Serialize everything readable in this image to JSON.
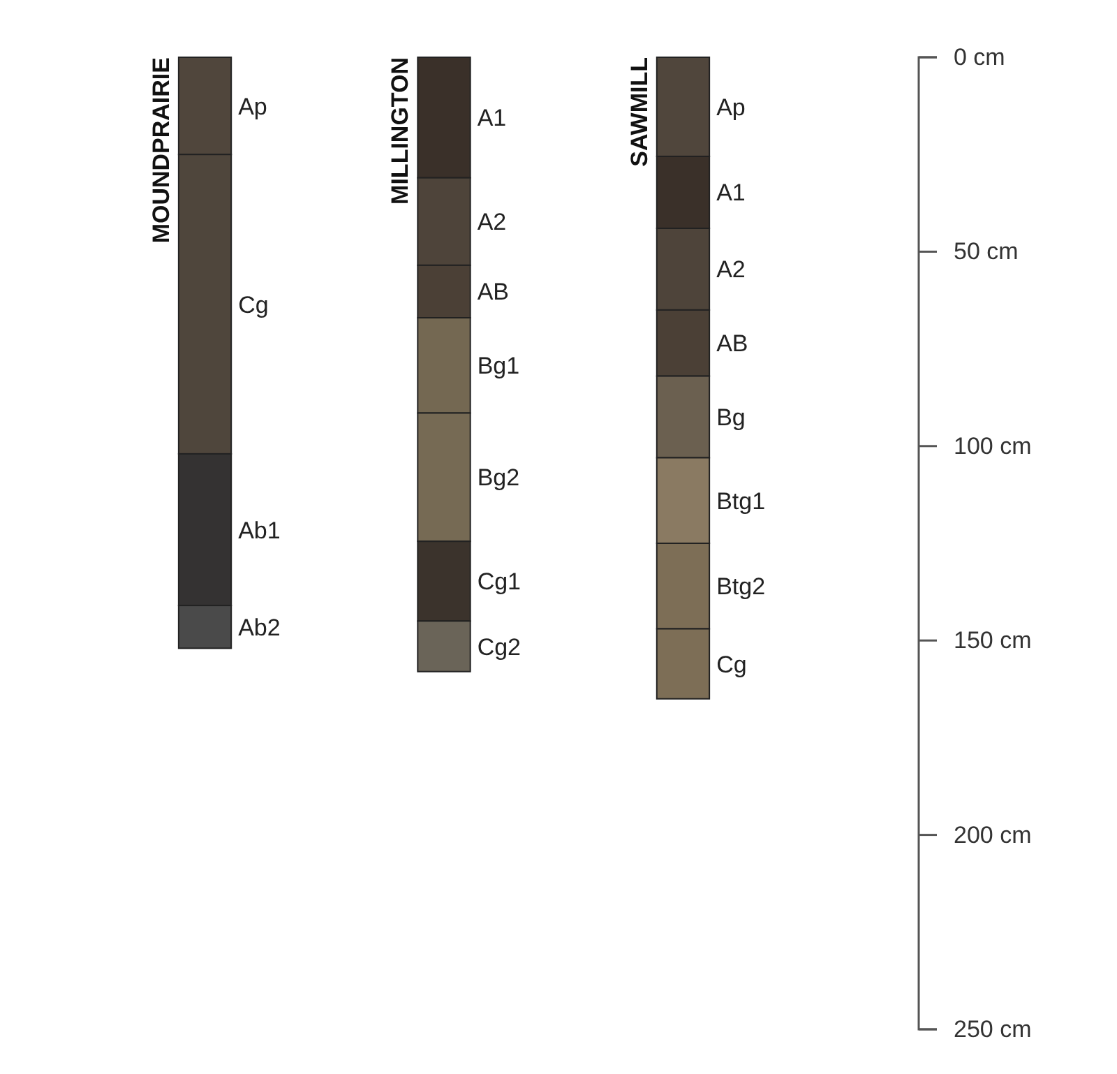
{
  "chart_data": {
    "type": "bar",
    "stacked": true,
    "categories": [
      "MOUNDPRAIRIE",
      "MILLINGTON",
      "SAWMILL"
    ],
    "series": [
      {
        "name": "Ap",
        "color": "#50463c",
        "values": [
          25,
          null,
          25.5
        ]
      },
      {
        "name": "Cg",
        "color": "#4f463c",
        "values": [
          77,
          null,
          null
        ]
      },
      {
        "name": "Ab1",
        "color": "#343232",
        "values": [
          39,
          null,
          null
        ]
      },
      {
        "name": "Ab2",
        "color": "#4a4a4a",
        "values": [
          11,
          null,
          null
        ]
      },
      {
        "name": "A1",
        "color": "#3a3029",
        "values": [
          null,
          31,
          18.5
        ]
      },
      {
        "name": "A2",
        "color": "#4e443a",
        "values": [
          null,
          22.5,
          21
        ]
      },
      {
        "name": "AB",
        "color": "#4b4036",
        "values": [
          null,
          13.5,
          17
        ]
      },
      {
        "name": "Bg1",
        "color": "#746852",
        "values": [
          null,
          24.5,
          null
        ]
      },
      {
        "name": "Bg2",
        "color": "#766a54",
        "values": [
          null,
          33,
          null
        ]
      },
      {
        "name": "Cg1",
        "color": "#3b332c",
        "values": [
          null,
          20.5,
          null
        ]
      },
      {
        "name": "Cg2",
        "color": "#6a6458",
        "values": [
          null,
          13,
          null
        ]
      },
      {
        "name": "Bg",
        "color": "#6b6050",
        "values": [
          null,
          null,
          21
        ]
      },
      {
        "name": "Btg1",
        "color": "#8a7a62",
        "values": [
          null,
          null,
          22
        ]
      },
      {
        "name": "Btg2",
        "color": "#7d6e56",
        "values": [
          null,
          null,
          22
        ]
      },
      {
        "name": "Cg",
        "color": "#7d6e56",
        "values": [
          null,
          null,
          18
        ]
      }
    ],
    "ylim": [
      250,
      0
    ],
    "yticks": [
      {
        "value": 0,
        "label": "0 cm"
      },
      {
        "value": 50,
        "label": "50 cm"
      },
      {
        "value": 100,
        "label": "100 cm"
      },
      {
        "value": 150,
        "label": "150 cm"
      },
      {
        "value": 200,
        "label": "200 cm"
      },
      {
        "value": 250,
        "label": "250 cm"
      }
    ],
    "grid": false,
    "legend": false
  }
}
